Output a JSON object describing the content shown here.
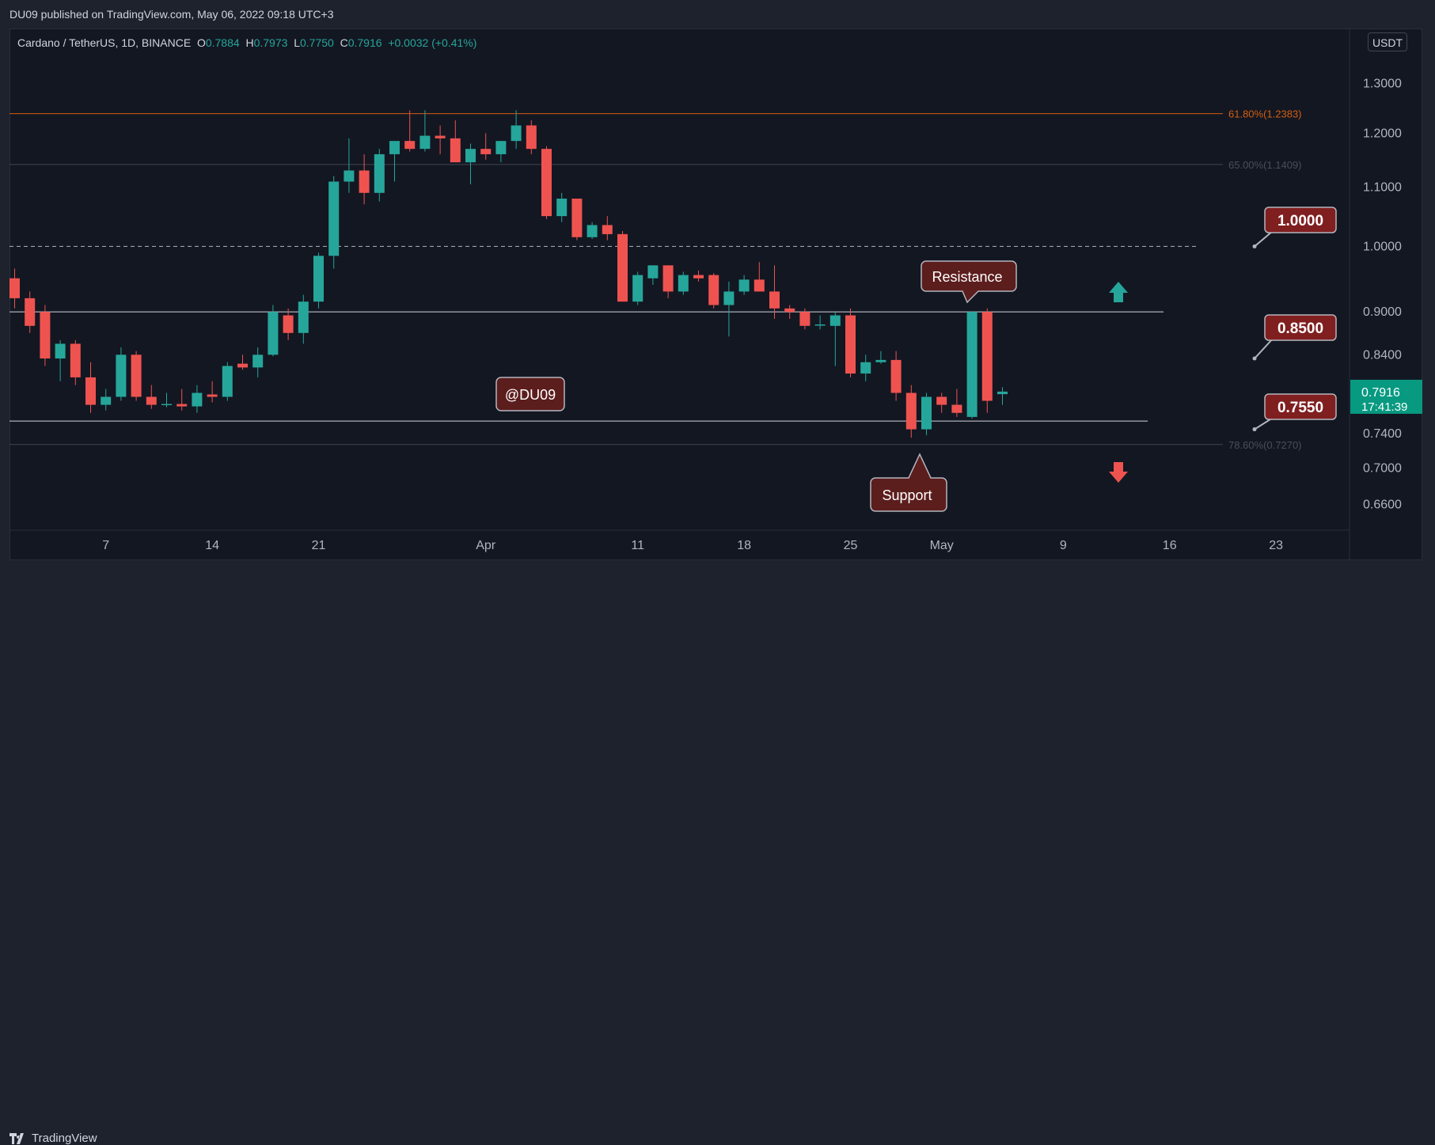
{
  "header": {
    "published": "DU09 published on TradingView.com, May 06, 2022 09:18 UTC+3"
  },
  "legend": {
    "symbol": "Cardano / TetherUS, 1D, BINANCE",
    "o_label": "O",
    "o": "0.7884",
    "h_label": "H",
    "h": "0.7973",
    "l_label": "L",
    "l": "0.7750",
    "c_label": "C",
    "c": "0.7916",
    "change": "+0.0032 (+0.41%)"
  },
  "currency_button": "USDT",
  "footer": {
    "brand": "TradingView"
  },
  "colors": {
    "up": "#26a69a",
    "down": "#ef5350",
    "fib": "#d35e11",
    "fib_faint": "#434651",
    "box_bg": "#5c1d1d",
    "box_border": "#b2b5be",
    "price_tag": "#089981"
  },
  "chart_data": {
    "type": "candlestick",
    "currency": "USDT",
    "y_scale": "log",
    "ylim": [
      0.635,
      1.36
    ],
    "y_ticks": [
      "1.3000",
      "1.2000",
      "1.1000",
      "1.0000",
      "0.9000",
      "0.8400",
      "0.7400",
      "0.7000",
      "0.6600"
    ],
    "y_tick_values": [
      1.3,
      1.2,
      1.1,
      1.0,
      0.9,
      0.84,
      0.74,
      0.7,
      0.66
    ],
    "x_ticks": [
      {
        "label": "7",
        "day": 7
      },
      {
        "label": "14",
        "day": 14
      },
      {
        "label": "21",
        "day": 21
      },
      {
        "label": "Apr",
        "day": 32
      },
      {
        "label": "11",
        "day": 42
      },
      {
        "label": "18",
        "day": 49
      },
      {
        "label": "25",
        "day": 56
      },
      {
        "label": "May",
        "day": 62
      },
      {
        "label": "9",
        "day": 70
      },
      {
        "label": "16",
        "day": 77
      },
      {
        "label": "23",
        "day": 84
      }
    ],
    "candles": [
      {
        "d": 1,
        "o": 0.95,
        "h": 0.965,
        "l": 0.905,
        "c": 0.92
      },
      {
        "d": 2,
        "o": 0.92,
        "h": 0.93,
        "l": 0.87,
        "c": 0.88
      },
      {
        "d": 3,
        "o": 0.9,
        "h": 0.91,
        "l": 0.825,
        "c": 0.835
      },
      {
        "d": 4,
        "o": 0.835,
        "h": 0.86,
        "l": 0.805,
        "c": 0.855
      },
      {
        "d": 5,
        "o": 0.855,
        "h": 0.86,
        "l": 0.8,
        "c": 0.81
      },
      {
        "d": 6,
        "o": 0.81,
        "h": 0.83,
        "l": 0.765,
        "c": 0.775
      },
      {
        "d": 7,
        "o": 0.775,
        "h": 0.795,
        "l": 0.768,
        "c": 0.785
      },
      {
        "d": 8,
        "o": 0.785,
        "h": 0.85,
        "l": 0.78,
        "c": 0.84
      },
      {
        "d": 9,
        "o": 0.84,
        "h": 0.845,
        "l": 0.78,
        "c": 0.785
      },
      {
        "d": 10,
        "o": 0.785,
        "h": 0.8,
        "l": 0.77,
        "c": 0.775
      },
      {
        "d": 11,
        "o": 0.775,
        "h": 0.79,
        "l": 0.772,
        "c": 0.776
      },
      {
        "d": 12,
        "o": 0.776,
        "h": 0.795,
        "l": 0.768,
        "c": 0.773
      },
      {
        "d": 13,
        "o": 0.773,
        "h": 0.8,
        "l": 0.765,
        "c": 0.79
      },
      {
        "d": 14,
        "o": 0.788,
        "h": 0.805,
        "l": 0.778,
        "c": 0.785
      },
      {
        "d": 15,
        "o": 0.785,
        "h": 0.83,
        "l": 0.78,
        "c": 0.825
      },
      {
        "d": 16,
        "o": 0.828,
        "h": 0.84,
        "l": 0.82,
        "c": 0.823
      },
      {
        "d": 17,
        "o": 0.823,
        "h": 0.85,
        "l": 0.81,
        "c": 0.84
      },
      {
        "d": 18,
        "o": 0.84,
        "h": 0.91,
        "l": 0.838,
        "c": 0.9
      },
      {
        "d": 19,
        "o": 0.895,
        "h": 0.905,
        "l": 0.86,
        "c": 0.87
      },
      {
        "d": 20,
        "o": 0.87,
        "h": 0.925,
        "l": 0.855,
        "c": 0.915
      },
      {
        "d": 21,
        "o": 0.915,
        "h": 0.99,
        "l": 0.905,
        "c": 0.985
      },
      {
        "d": 22,
        "o": 0.985,
        "h": 1.12,
        "l": 0.965,
        "c": 1.11
      },
      {
        "d": 23,
        "o": 1.11,
        "h": 1.19,
        "l": 1.09,
        "c": 1.13
      },
      {
        "d": 24,
        "o": 1.13,
        "h": 1.16,
        "l": 1.07,
        "c": 1.09
      },
      {
        "d": 25,
        "o": 1.09,
        "h": 1.17,
        "l": 1.075,
        "c": 1.16
      },
      {
        "d": 26,
        "o": 1.16,
        "h": 1.18,
        "l": 1.11,
        "c": 1.185
      },
      {
        "d": 27,
        "o": 1.185,
        "h": 1.245,
        "l": 1.165,
        "c": 1.17
      },
      {
        "d": 28,
        "o": 1.17,
        "h": 1.245,
        "l": 1.165,
        "c": 1.195
      },
      {
        "d": 29,
        "o": 1.195,
        "h": 1.215,
        "l": 1.16,
        "c": 1.19
      },
      {
        "d": 30,
        "o": 1.19,
        "h": 1.225,
        "l": 1.145,
        "c": 1.145
      },
      {
        "d": 31,
        "o": 1.145,
        "h": 1.18,
        "l": 1.105,
        "c": 1.17
      },
      {
        "d": 32,
        "o": 1.17,
        "h": 1.2,
        "l": 1.15,
        "c": 1.16
      },
      {
        "d": 33,
        "o": 1.16,
        "h": 1.185,
        "l": 1.145,
        "c": 1.185
      },
      {
        "d": 34,
        "o": 1.185,
        "h": 1.245,
        "l": 1.17,
        "c": 1.215
      },
      {
        "d": 35,
        "o": 1.215,
        "h": 1.225,
        "l": 1.16,
        "c": 1.17
      },
      {
        "d": 36,
        "o": 1.17,
        "h": 1.175,
        "l": 1.045,
        "c": 1.05
      },
      {
        "d": 37,
        "o": 1.05,
        "h": 1.09,
        "l": 1.04,
        "c": 1.08
      },
      {
        "d": 38,
        "o": 1.08,
        "h": 1.08,
        "l": 1.01,
        "c": 1.015
      },
      {
        "d": 39,
        "o": 1.015,
        "h": 1.04,
        "l": 1.012,
        "c": 1.035
      },
      {
        "d": 40,
        "o": 1.035,
        "h": 1.05,
        "l": 1.01,
        "c": 1.02
      },
      {
        "d": 41,
        "o": 1.02,
        "h": 1.025,
        "l": 0.915,
        "c": 0.915
      },
      {
        "d": 42,
        "o": 0.915,
        "h": 0.96,
        "l": 0.91,
        "c": 0.955
      },
      {
        "d": 43,
        "o": 0.95,
        "h": 0.97,
        "l": 0.94,
        "c": 0.97
      },
      {
        "d": 44,
        "o": 0.97,
        "h": 0.97,
        "l": 0.92,
        "c": 0.93
      },
      {
        "d": 45,
        "o": 0.93,
        "h": 0.96,
        "l": 0.925,
        "c": 0.955
      },
      {
        "d": 46,
        "o": 0.955,
        "h": 0.962,
        "l": 0.945,
        "c": 0.95
      },
      {
        "d": 47,
        "o": 0.955,
        "h": 0.958,
        "l": 0.905,
        "c": 0.91
      },
      {
        "d": 48,
        "o": 0.91,
        "h": 0.945,
        "l": 0.865,
        "c": 0.93
      },
      {
        "d": 49,
        "o": 0.93,
        "h": 0.955,
        "l": 0.925,
        "c": 0.948
      },
      {
        "d": 50,
        "o": 0.948,
        "h": 0.975,
        "l": 0.93,
        "c": 0.93
      },
      {
        "d": 51,
        "o": 0.93,
        "h": 0.97,
        "l": 0.89,
        "c": 0.905
      },
      {
        "d": 52,
        "o": 0.905,
        "h": 0.91,
        "l": 0.89,
        "c": 0.9
      },
      {
        "d": 53,
        "o": 0.9,
        "h": 0.905,
        "l": 0.875,
        "c": 0.88
      },
      {
        "d": 54,
        "o": 0.882,
        "h": 0.895,
        "l": 0.875,
        "c": 0.882
      },
      {
        "d": 55,
        "o": 0.88,
        "h": 0.9,
        "l": 0.825,
        "c": 0.895
      },
      {
        "d": 56,
        "o": 0.895,
        "h": 0.905,
        "l": 0.81,
        "c": 0.815
      },
      {
        "d": 57,
        "o": 0.815,
        "h": 0.84,
        "l": 0.805,
        "c": 0.83
      },
      {
        "d": 58,
        "o": 0.83,
        "h": 0.845,
        "l": 0.828,
        "c": 0.833
      },
      {
        "d": 59,
        "o": 0.833,
        "h": 0.845,
        "l": 0.78,
        "c": 0.79
      },
      {
        "d": 60,
        "o": 0.79,
        "h": 0.8,
        "l": 0.735,
        "c": 0.745
      },
      {
        "d": 61,
        "o": 0.745,
        "h": 0.79,
        "l": 0.738,
        "c": 0.785
      },
      {
        "d": 62,
        "o": 0.785,
        "h": 0.79,
        "l": 0.765,
        "c": 0.775
      },
      {
        "d": 63,
        "o": 0.775,
        "h": 0.795,
        "l": 0.76,
        "c": 0.765
      },
      {
        "d": 64,
        "o": 0.76,
        "h": 0.9,
        "l": 0.758,
        "c": 0.9
      },
      {
        "d": 65,
        "o": 0.9,
        "h": 0.905,
        "l": 0.765,
        "c": 0.78
      },
      {
        "d": 66,
        "o": 0.7884,
        "h": 0.7973,
        "l": 0.775,
        "c": 0.7916
      }
    ],
    "horizontal_levels": [
      {
        "label": "61.80%(1.2383)",
        "value": 1.2383,
        "style": "fib"
      },
      {
        "label": "65.00%(1.1409)",
        "value": 1.1409,
        "style": "fib-faint"
      },
      {
        "label": "",
        "value": 1.0,
        "style": "dashed"
      },
      {
        "label": "",
        "value": 0.9,
        "style": "solid"
      },
      {
        "label": "",
        "value": 0.755,
        "style": "solid"
      },
      {
        "label": "78.60%(0.7270)",
        "value": 0.727,
        "style": "fib-faint"
      }
    ],
    "callouts": [
      {
        "text": "1.0000",
        "value": 1.0
      },
      {
        "text": "0.8500",
        "value": 0.85
      },
      {
        "text": "0.7550",
        "value": 0.755
      }
    ],
    "annotations": [
      {
        "text": "Resistance"
      },
      {
        "text": "Support"
      },
      {
        "text": "@DU09"
      }
    ],
    "arrows": [
      {
        "direction": "up",
        "color": "#26a69a"
      },
      {
        "direction": "down",
        "color": "#ef5350"
      }
    ],
    "last_price": {
      "price": "0.7916",
      "countdown": "17:41:39",
      "value": 0.7916
    }
  }
}
